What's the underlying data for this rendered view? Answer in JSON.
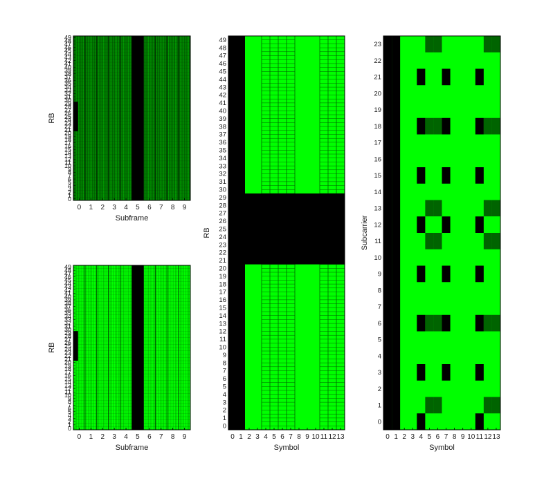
{
  "colors": {
    "bright": "#00ff00",
    "dark": "#006400",
    "black": "#000000",
    "mid": "#1f8a1f"
  },
  "chart_data": [
    {
      "type": "heatmap",
      "id": "top-left",
      "xlabel": "Subframe",
      "ylabel": "RB",
      "x_ticks": [
        "0",
        "1",
        "2",
        "3",
        "4",
        "5",
        "6",
        "7",
        "8",
        "9"
      ],
      "y_ticks": [
        "0",
        "1",
        "2",
        "3",
        "4",
        "5",
        "6",
        "7",
        "8",
        "9",
        "10",
        "11",
        "12",
        "13",
        "14",
        "15",
        "16",
        "17",
        "18",
        "19",
        "20",
        "21",
        "22",
        "23",
        "24",
        "25",
        "26",
        "27",
        "28",
        "29",
        "30",
        "31",
        "32",
        "33",
        "34",
        "35",
        "36",
        "37",
        "38",
        "39",
        "40",
        "41",
        "42",
        "43",
        "44",
        "45",
        "46",
        "47",
        "48",
        "49"
      ],
      "xlim": [
        -0.5,
        9.5
      ],
      "ylim": [
        -0.5,
        49.5
      ],
      "background": "dark",
      "black_regions": [
        {
          "x": [
            -0.5,
            -0.1
          ],
          "y": [
            20.5,
            29.5
          ]
        },
        {
          "x": [
            4.5,
            5.5
          ],
          "y": [
            -0.5,
            49.5
          ]
        }
      ]
    },
    {
      "type": "heatmap",
      "id": "bottom-left",
      "xlabel": "Subframe",
      "ylabel": "RB",
      "x_ticks": [
        "0",
        "1",
        "2",
        "3",
        "4",
        "5",
        "6",
        "7",
        "8",
        "9"
      ],
      "y_ticks": [
        "0",
        "1",
        "2",
        "3",
        "4",
        "5",
        "6",
        "7",
        "8",
        "9",
        "10",
        "11",
        "12",
        "13",
        "14",
        "15",
        "16",
        "17",
        "18",
        "19",
        "20",
        "21",
        "22",
        "23",
        "24",
        "25",
        "26",
        "27",
        "28",
        "29",
        "30",
        "31",
        "32",
        "33",
        "34",
        "35",
        "36",
        "37",
        "38",
        "39",
        "40",
        "41",
        "42",
        "43",
        "44",
        "45",
        "46",
        "47",
        "48",
        "49"
      ],
      "xlim": [
        -0.5,
        9.5
      ],
      "ylim": [
        -0.5,
        49.5
      ],
      "background": "bright",
      "black_regions": [
        {
          "x": [
            -0.5,
            -0.1
          ],
          "y": [
            20.5,
            29.5
          ]
        },
        {
          "x": [
            4.5,
            5.5
          ],
          "y": [
            -0.5,
            49.5
          ]
        }
      ]
    },
    {
      "type": "heatmap",
      "id": "middle",
      "xlabel": "Symbol",
      "ylabel": "RB",
      "x_ticks": [
        "0",
        "1",
        "2",
        "3",
        "4",
        "5",
        "6",
        "7",
        "8",
        "9",
        "10",
        "11",
        "12",
        "13"
      ],
      "y_ticks": [
        "0",
        "1",
        "2",
        "3",
        "4",
        "5",
        "6",
        "7",
        "8",
        "9",
        "10",
        "11",
        "12",
        "13",
        "14",
        "15",
        "16",
        "17",
        "18",
        "19",
        "20",
        "21",
        "22",
        "23",
        "24",
        "25",
        "26",
        "27",
        "28",
        "29",
        "30",
        "31",
        "32",
        "33",
        "34",
        "35",
        "36",
        "37",
        "38",
        "39",
        "40",
        "41",
        "42",
        "43",
        "44",
        "45",
        "46",
        "47",
        "48",
        "49"
      ],
      "xlim": [
        -0.5,
        13.5
      ],
      "ylim": [
        -0.5,
        49.5
      ],
      "columns_black": [
        0,
        1
      ],
      "rows_black": [
        [
          20.5,
          29.5
        ]
      ],
      "hatched_columns": [
        [
          3.5,
          7.5
        ],
        [
          10.5,
          13.5
        ]
      ],
      "background": "bright"
    },
    {
      "type": "heatmap",
      "id": "right",
      "xlabel": "Symbol",
      "ylabel": "Subcarrier",
      "x_ticks": [
        "0",
        "1",
        "2",
        "3",
        "4",
        "5",
        "6",
        "7",
        "8",
        "9",
        "10",
        "11",
        "12",
        "13"
      ],
      "y_ticks": [
        "0",
        "1",
        "2",
        "3",
        "4",
        "5",
        "6",
        "7",
        "8",
        "9",
        "10",
        "11",
        "12",
        "13",
        "14",
        "15",
        "16",
        "17",
        "18",
        "19",
        "20",
        "21",
        "22",
        "23"
      ],
      "xlim": [
        -0.5,
        13.5
      ],
      "ylim": [
        -0.5,
        23.5
      ],
      "columns_black": [
        0,
        1
      ],
      "background": "bright",
      "black_cells": [
        [
          4,
          0
        ],
        [
          11,
          0
        ],
        [
          4,
          3
        ],
        [
          7,
          3
        ],
        [
          11,
          3
        ],
        [
          4,
          6
        ],
        [
          7,
          6
        ],
        [
          11,
          6
        ],
        [
          4,
          9
        ],
        [
          7,
          9
        ],
        [
          11,
          9
        ],
        [
          4,
          12
        ],
        [
          7,
          12
        ],
        [
          11,
          12
        ],
        [
          4,
          15
        ],
        [
          7,
          15
        ],
        [
          11,
          15
        ],
        [
          4,
          18
        ],
        [
          7,
          18
        ],
        [
          11,
          18
        ],
        [
          4,
          21
        ],
        [
          7,
          21
        ],
        [
          11,
          21
        ]
      ],
      "dark_cells": [
        [
          5,
          1
        ],
        [
          6,
          1
        ],
        [
          12,
          1
        ],
        [
          13,
          1
        ],
        [
          5,
          6
        ],
        [
          6,
          6
        ],
        [
          12,
          6
        ],
        [
          13,
          6
        ],
        [
          5,
          11
        ],
        [
          6,
          11
        ],
        [
          12,
          11
        ],
        [
          13,
          11
        ],
        [
          5,
          13
        ],
        [
          6,
          13
        ],
        [
          12,
          13
        ],
        [
          13,
          13
        ],
        [
          5,
          18
        ],
        [
          6,
          18
        ],
        [
          12,
          18
        ],
        [
          13,
          18
        ],
        [
          5,
          23
        ],
        [
          6,
          23
        ],
        [
          12,
          23
        ],
        [
          13,
          23
        ]
      ],
      "bright_cells": [
        [
          5,
          12
        ],
        [
          6,
          12
        ],
        [
          12,
          12
        ],
        [
          13,
          12
        ]
      ]
    }
  ]
}
